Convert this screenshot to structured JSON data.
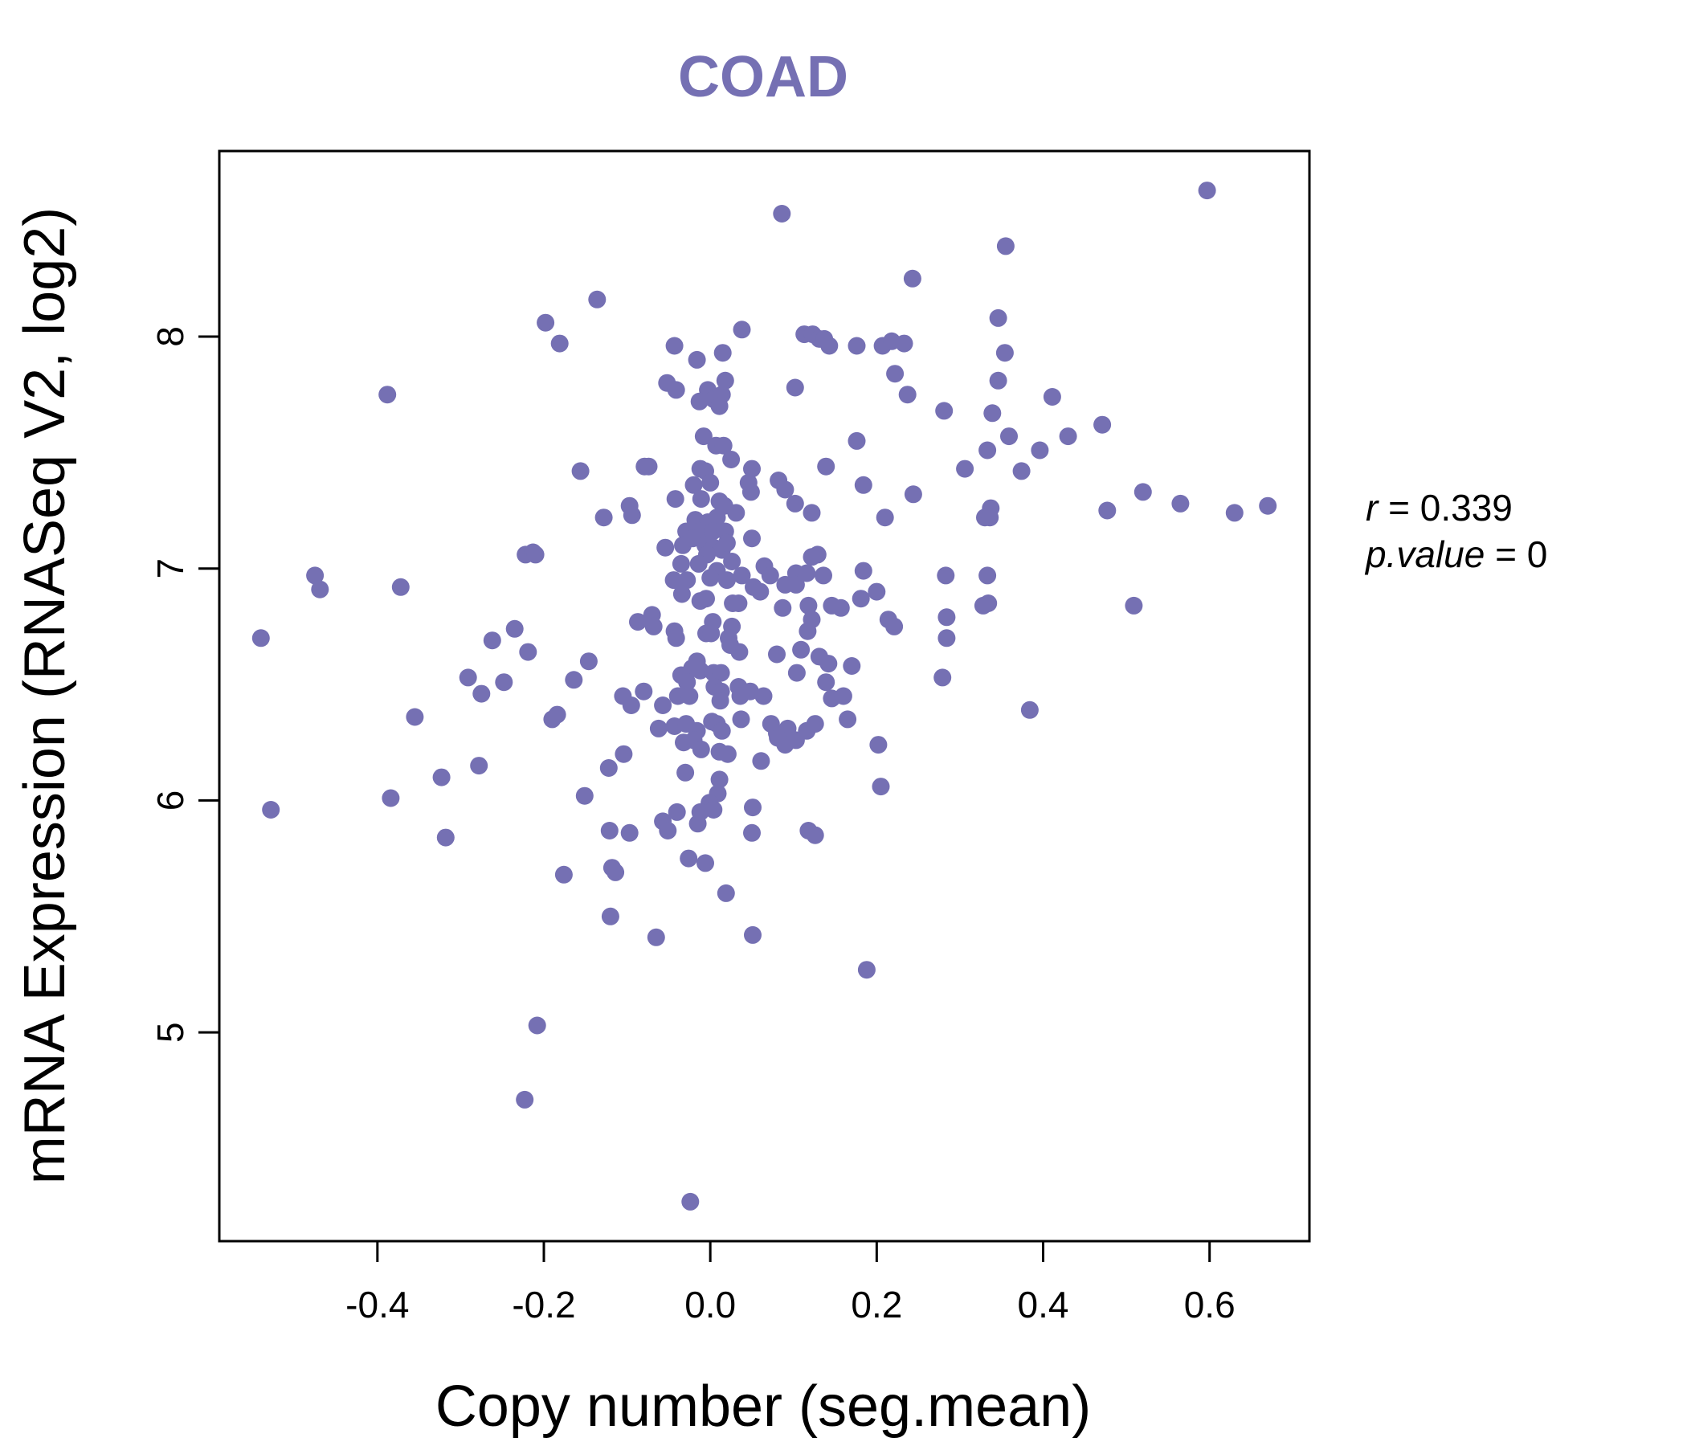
{
  "chart_data": {
    "type": "scatter",
    "title": "COAD",
    "xlabel": "Copy number (seg.mean)",
    "ylabel": "mRNA Expression (RNASeq V2, log2)",
    "xlim": [
      -0.59,
      0.72
    ],
    "ylim": [
      4.1,
      8.8
    ],
    "x_ticks": [
      -0.4,
      -0.2,
      0.0,
      0.2,
      0.4,
      0.6
    ],
    "x_tick_labels": [
      "-0.4",
      "-0.2",
      "0.0",
      "0.2",
      "0.4",
      "0.6"
    ],
    "y_ticks": [
      5,
      6,
      7,
      8
    ],
    "y_tick_labels": [
      "5",
      "6",
      "7",
      "8"
    ],
    "grid": false,
    "point_color": "#7570b3",
    "stats": {
      "r_label": "r",
      "r_value": "0.339",
      "p_label": "p.value",
      "p_value": "0"
    },
    "points": [
      [
        0.597,
        8.63
      ],
      [
        0.086,
        8.53
      ],
      [
        0.355,
        8.39
      ],
      [
        0.243,
        8.25
      ],
      [
        -0.136,
        8.16
      ],
      [
        -0.198,
        8.06
      ],
      [
        0.038,
        8.03
      ],
      [
        -0.181,
        7.97
      ],
      [
        0.113,
        8.01
      ],
      [
        0.123,
        8.01
      ],
      [
        0.131,
        7.99
      ],
      [
        0.137,
        7.99
      ],
      [
        0.143,
        7.96
      ],
      [
        0.176,
        7.96
      ],
      [
        0.207,
        7.96
      ],
      [
        0.218,
        7.98
      ],
      [
        0.233,
        7.97
      ],
      [
        0.346,
        8.08
      ],
      [
        0.354,
        7.93
      ],
      [
        -0.043,
        7.96
      ],
      [
        0.015,
        7.93
      ],
      [
        -0.016,
        7.9
      ],
      [
        0.222,
        7.84
      ],
      [
        0.346,
        7.81
      ],
      [
        -0.388,
        7.75
      ],
      [
        -0.052,
        7.8
      ],
      [
        -0.041,
        7.77
      ],
      [
        -0.003,
        7.77
      ],
      [
        0.004,
        7.73
      ],
      [
        0.014,
        7.75
      ],
      [
        0.018,
        7.81
      ],
      [
        0.011,
        7.7
      ],
      [
        -0.013,
        7.72
      ],
      [
        0.102,
        7.78
      ],
      [
        0.237,
        7.75
      ],
      [
        0.281,
        7.68
      ],
      [
        0.339,
        7.67
      ],
      [
        0.411,
        7.74
      ],
      [
        0.471,
        7.62
      ],
      [
        0.359,
        7.57
      ],
      [
        0.43,
        7.57
      ],
      [
        0.176,
        7.55
      ],
      [
        0.333,
        7.51
      ],
      [
        0.396,
        7.51
      ],
      [
        -0.008,
        7.57
      ],
      [
        0.007,
        7.53
      ],
      [
        0.016,
        7.53
      ],
      [
        0.025,
        7.47
      ],
      [
        -0.079,
        7.44
      ],
      [
        -0.156,
        7.42
      ],
      [
        -0.074,
        7.44
      ],
      [
        0.139,
        7.44
      ],
      [
        0.306,
        7.43
      ],
      [
        0.374,
        7.42
      ],
      [
        -0.012,
        7.43
      ],
      [
        -0.006,
        7.42
      ],
      [
        0.05,
        7.43
      ],
      [
        -0.02,
        7.36
      ],
      [
        0.0,
        7.37
      ],
      [
        0.046,
        7.37
      ],
      [
        0.049,
        7.33
      ],
      [
        0.082,
        7.38
      ],
      [
        0.09,
        7.34
      ],
      [
        0.184,
        7.36
      ],
      [
        0.244,
        7.32
      ],
      [
        0.52,
        7.33
      ],
      [
        0.565,
        7.28
      ],
      [
        0.63,
        7.24
      ],
      [
        0.67,
        7.27
      ],
      [
        0.477,
        7.25
      ],
      [
        0.337,
        7.26
      ],
      [
        0.33,
        7.22
      ],
      [
        0.336,
        7.22
      ],
      [
        0.21,
        7.22
      ],
      [
        0.122,
        7.24
      ],
      [
        0.102,
        7.28
      ],
      [
        -0.011,
        7.3
      ],
      [
        -0.042,
        7.3
      ],
      [
        0.011,
        7.29
      ],
      [
        0.017,
        7.27
      ],
      [
        0.031,
        7.24
      ],
      [
        -0.097,
        7.27
      ],
      [
        -0.094,
        7.23
      ],
      [
        -0.128,
        7.22
      ],
      [
        -0.018,
        7.21
      ],
      [
        -0.003,
        7.2
      ],
      [
        0.008,
        7.22
      ],
      [
        -0.029,
        7.16
      ],
      [
        -0.013,
        7.16
      ],
      [
        0.003,
        7.16
      ],
      [
        0.018,
        7.16
      ],
      [
        0.05,
        7.13
      ],
      [
        -0.054,
        7.09
      ],
      [
        -0.033,
        7.1
      ],
      [
        -0.021,
        7.13
      ],
      [
        -0.006,
        7.1
      ],
      [
        0.004,
        7.09
      ],
      [
        0.014,
        7.08
      ],
      [
        0.02,
        7.11
      ],
      [
        -0.004,
        7.06
      ],
      [
        -0.222,
        7.06
      ],
      [
        -0.213,
        7.07
      ],
      [
        -0.21,
        7.06
      ],
      [
        0.122,
        7.05
      ],
      [
        0.129,
        7.06
      ],
      [
        -0.035,
        7.02
      ],
      [
        -0.014,
        7.02
      ],
      [
        0.026,
        7.03
      ],
      [
        0.065,
        7.01
      ],
      [
        0.008,
        6.99
      ],
      [
        0.038,
        6.97
      ],
      [
        0.072,
        6.97
      ],
      [
        0.103,
        6.98
      ],
      [
        0.116,
        6.98
      ],
      [
        0.136,
        6.97
      ],
      [
        0.184,
        6.99
      ],
      [
        -0.475,
        6.97
      ],
      [
        -0.469,
        6.91
      ],
      [
        -0.372,
        6.92
      ],
      [
        0.283,
        6.97
      ],
      [
        0.333,
        6.97
      ],
      [
        -0.044,
        6.95
      ],
      [
        -0.028,
        6.95
      ],
      [
        0.0,
        6.96
      ],
      [
        0.02,
        6.95
      ],
      [
        0.052,
        6.92
      ],
      [
        0.06,
        6.9
      ],
      [
        0.09,
        6.93
      ],
      [
        0.103,
        6.93
      ],
      [
        0.181,
        6.87
      ],
      [
        0.2,
        6.9
      ],
      [
        -0.034,
        6.89
      ],
      [
        -0.012,
        6.86
      ],
      [
        -0.005,
        6.87
      ],
      [
        0.027,
        6.85
      ],
      [
        0.034,
        6.85
      ],
      [
        0.087,
        6.83
      ],
      [
        0.118,
        6.84
      ],
      [
        0.146,
        6.84
      ],
      [
        0.157,
        6.83
      ],
      [
        0.328,
        6.84
      ],
      [
        0.334,
        6.85
      ],
      [
        0.509,
        6.84
      ],
      [
        -0.07,
        6.8
      ],
      [
        -0.087,
        6.77
      ],
      [
        -0.068,
        6.75
      ],
      [
        0.003,
        6.77
      ],
      [
        0.026,
        6.75
      ],
      [
        0.122,
        6.78
      ],
      [
        0.214,
        6.78
      ],
      [
        0.221,
        6.75
      ],
      [
        0.284,
        6.79
      ],
      [
        -0.54,
        6.7
      ],
      [
        -0.235,
        6.74
      ],
      [
        -0.262,
        6.69
      ],
      [
        -0.043,
        6.73
      ],
      [
        -0.041,
        6.7
      ],
      [
        -0.005,
        6.72
      ],
      [
        0.001,
        6.72
      ],
      [
        0.022,
        6.7
      ],
      [
        0.024,
        6.67
      ],
      [
        0.035,
        6.64
      ],
      [
        0.117,
        6.73
      ],
      [
        0.284,
        6.7
      ],
      [
        -0.219,
        6.64
      ],
      [
        0.08,
        6.63
      ],
      [
        0.109,
        6.65
      ],
      [
        0.131,
        6.62
      ],
      [
        0.142,
        6.59
      ],
      [
        0.17,
        6.58
      ],
      [
        -0.146,
        6.6
      ],
      [
        -0.016,
        6.6
      ],
      [
        -0.022,
        6.57
      ],
      [
        -0.012,
        6.56
      ],
      [
        0.004,
        6.55
      ],
      [
        0.013,
        6.55
      ],
      [
        0.104,
        6.55
      ],
      [
        0.279,
        6.53
      ],
      [
        -0.291,
        6.53
      ],
      [
        -0.164,
        6.52
      ],
      [
        -0.248,
        6.51
      ],
      [
        -0.035,
        6.54
      ],
      [
        -0.028,
        6.51
      ],
      [
        0.005,
        6.49
      ],
      [
        0.013,
        6.47
      ],
      [
        0.034,
        6.49
      ],
      [
        0.048,
        6.47
      ],
      [
        0.139,
        6.51
      ],
      [
        -0.275,
        6.46
      ],
      [
        -0.105,
        6.45
      ],
      [
        -0.08,
        6.47
      ],
      [
        -0.039,
        6.45
      ],
      [
        -0.025,
        6.45
      ],
      [
        0.012,
        6.43
      ],
      [
        0.036,
        6.45
      ],
      [
        0.064,
        6.45
      ],
      [
        0.146,
        6.44
      ],
      [
        -0.095,
        6.41
      ],
      [
        -0.057,
        6.41
      ],
      [
        0.16,
        6.45
      ],
      [
        -0.355,
        6.36
      ],
      [
        -0.184,
        6.37
      ],
      [
        -0.19,
        6.35
      ],
      [
        0.002,
        6.34
      ],
      [
        0.037,
        6.35
      ],
      [
        -0.062,
        6.31
      ],
      [
        -0.043,
        6.32
      ],
      [
        -0.029,
        6.33
      ],
      [
        -0.016,
        6.3
      ],
      [
        0.008,
        6.33
      ],
      [
        0.014,
        6.3
      ],
      [
        0.073,
        6.33
      ],
      [
        0.08,
        6.29
      ],
      [
        0.093,
        6.31
      ],
      [
        0.116,
        6.3
      ],
      [
        0.126,
        6.33
      ],
      [
        0.165,
        6.35
      ],
      [
        0.384,
        6.39
      ],
      [
        -0.032,
        6.25
      ],
      [
        -0.02,
        6.26
      ],
      [
        -0.011,
        6.22
      ],
      [
        0.011,
        6.21
      ],
      [
        0.021,
        6.2
      ],
      [
        0.081,
        6.27
      ],
      [
        0.09,
        6.24
      ],
      [
        0.103,
        6.26
      ],
      [
        0.202,
        6.24
      ],
      [
        -0.104,
        6.2
      ],
      [
        -0.122,
        6.14
      ],
      [
        -0.278,
        6.15
      ],
      [
        -0.323,
        6.1
      ],
      [
        0.011,
        6.09
      ],
      [
        0.061,
        6.17
      ],
      [
        -0.03,
        6.12
      ],
      [
        0.009,
        6.03
      ],
      [
        0.205,
        6.06
      ],
      [
        -0.384,
        6.01
      ],
      [
        -0.151,
        6.02
      ],
      [
        -0.001,
        5.99
      ],
      [
        0.051,
        5.97
      ],
      [
        -0.528,
        5.96
      ],
      [
        -0.04,
        5.95
      ],
      [
        -0.012,
        5.95
      ],
      [
        0.004,
        5.96
      ],
      [
        -0.057,
        5.91
      ],
      [
        -0.051,
        5.87
      ],
      [
        -0.015,
        5.9
      ],
      [
        0.05,
        5.86
      ],
      [
        0.118,
        5.87
      ],
      [
        0.126,
        5.85
      ],
      [
        -0.318,
        5.84
      ],
      [
        -0.121,
        5.87
      ],
      [
        -0.097,
        5.86
      ],
      [
        -0.026,
        5.75
      ],
      [
        -0.006,
        5.73
      ],
      [
        -0.176,
        5.68
      ],
      [
        -0.118,
        5.71
      ],
      [
        -0.114,
        5.69
      ],
      [
        0.019,
        5.6
      ],
      [
        -0.12,
        5.5
      ],
      [
        -0.065,
        5.41
      ],
      [
        0.051,
        5.42
      ],
      [
        0.188,
        5.27
      ],
      [
        -0.208,
        5.03
      ],
      [
        -0.223,
        4.71
      ],
      [
        -0.024,
        4.27
      ]
    ]
  }
}
